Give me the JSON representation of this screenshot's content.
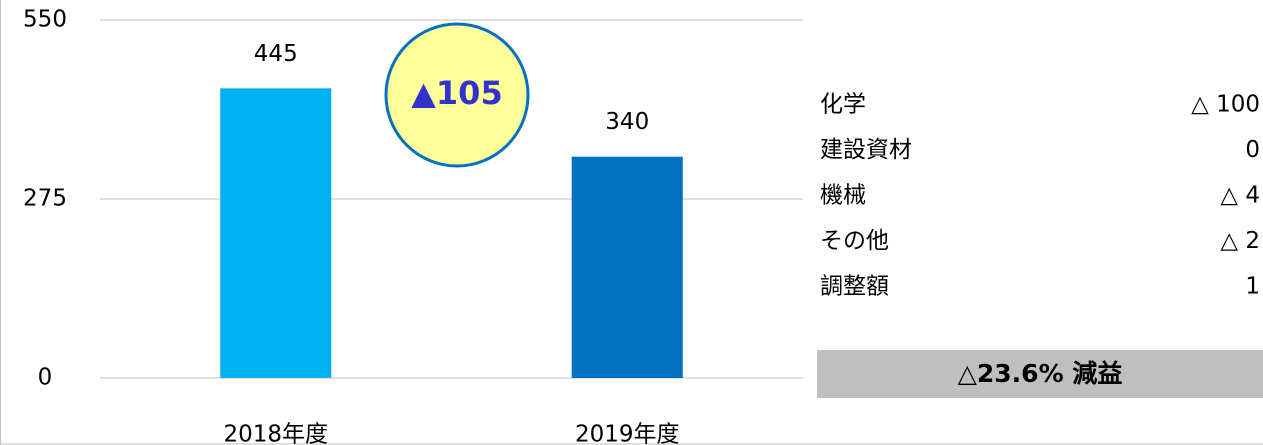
{
  "chart_data": {
    "type": "bar",
    "categories": [
      "2018年度",
      "2019年度"
    ],
    "values": [
      445,
      340
    ],
    "colors": [
      "#00b0f0",
      "#0070c0"
    ],
    "ylim": [
      0,
      550
    ],
    "yticks": [
      0,
      275,
      550
    ],
    "grid": true,
    "annotation": "▲105"
  },
  "breakdown": [
    {
      "label": "化学",
      "value": "△ 100"
    },
    {
      "label": "建設資材",
      "value": "0"
    },
    {
      "label": "機械",
      "value": "△ 4"
    },
    {
      "label": "その他",
      "value": "△ 2"
    },
    {
      "label": "調整額",
      "value": "1"
    }
  ],
  "summary": "△23.6% 減益"
}
